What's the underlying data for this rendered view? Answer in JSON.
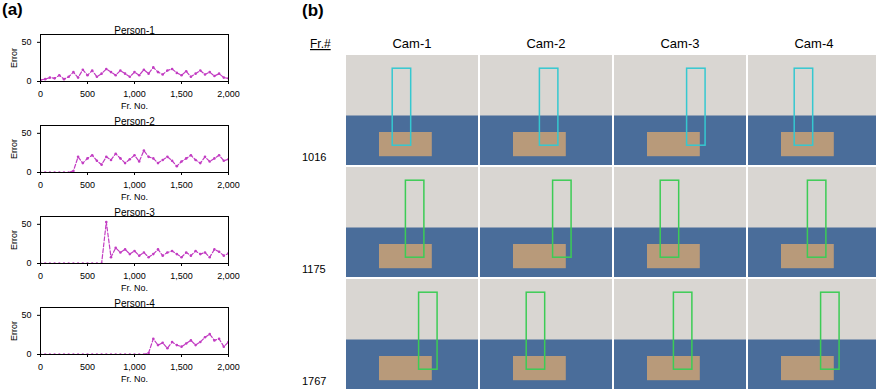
{
  "chart_data": [
    {
      "type": "line",
      "title": "Person-1",
      "xlabel": "Fr. No.",
      "ylabel": "Error",
      "color": "#c23cc2",
      "marker": "circle",
      "line_style": "dashed",
      "xlim": [
        0,
        2000
      ],
      "xticks": [
        0,
        500,
        1000,
        1500,
        2000
      ],
      "ylim": [
        0,
        60
      ],
      "yticks": [
        0,
        50
      ],
      "x": [
        0,
        50,
        100,
        150,
        200,
        250,
        300,
        350,
        400,
        450,
        500,
        550,
        600,
        650,
        700,
        750,
        800,
        850,
        900,
        950,
        1000,
        1050,
        1100,
        1150,
        1200,
        1250,
        1300,
        1350,
        1400,
        1450,
        1500,
        1550,
        1600,
        1650,
        1700,
        1750,
        1800,
        1850,
        1900,
        1950,
        2000
      ],
      "values": [
        2,
        3,
        5,
        4,
        8,
        3,
        6,
        12,
        5,
        15,
        8,
        14,
        6,
        10,
        16,
        12,
        8,
        14,
        10,
        6,
        12,
        8,
        15,
        10,
        18,
        12,
        9,
        14,
        16,
        11,
        8,
        13,
        6,
        10,
        14,
        9,
        12,
        7,
        10,
        5,
        4
      ]
    },
    {
      "type": "line",
      "title": "Person-2",
      "xlabel": "Fr. No.",
      "ylabel": "Error",
      "color": "#c23cc2",
      "marker": "circle",
      "line_style": "dashed",
      "xlim": [
        0,
        2000
      ],
      "xticks": [
        0,
        500,
        1000,
        1500,
        2000
      ],
      "ylim": [
        0,
        60
      ],
      "yticks": [
        0,
        50
      ],
      "x": [
        0,
        50,
        100,
        150,
        200,
        250,
        300,
        350,
        400,
        450,
        500,
        550,
        600,
        650,
        700,
        750,
        800,
        850,
        900,
        950,
        1000,
        1050,
        1100,
        1150,
        1200,
        1250,
        1300,
        1350,
        1400,
        1450,
        1500,
        1550,
        1600,
        1650,
        1700,
        1750,
        1800,
        1850,
        1900,
        1950,
        2000
      ],
      "values": [
        0,
        0,
        0,
        0,
        0,
        0,
        0,
        2,
        20,
        12,
        18,
        22,
        15,
        10,
        20,
        16,
        24,
        18,
        12,
        17,
        22,
        14,
        28,
        20,
        18,
        12,
        16,
        20,
        15,
        8,
        14,
        18,
        22,
        16,
        12,
        20,
        14,
        18,
        22,
        15,
        17
      ]
    },
    {
      "type": "line",
      "title": "Person-3",
      "xlabel": "Fr. No.",
      "ylabel": "Error",
      "color": "#c23cc2",
      "marker": "circle",
      "line_style": "dashed",
      "xlim": [
        0,
        2000
      ],
      "xticks": [
        0,
        500,
        1000,
        1500,
        2000
      ],
      "ylim": [
        0,
        60
      ],
      "yticks": [
        0,
        50
      ],
      "x": [
        0,
        50,
        100,
        150,
        200,
        250,
        300,
        350,
        400,
        450,
        500,
        550,
        600,
        650,
        700,
        750,
        800,
        850,
        900,
        950,
        1000,
        1050,
        1100,
        1150,
        1200,
        1250,
        1300,
        1350,
        1400,
        1450,
        1500,
        1550,
        1600,
        1650,
        1700,
        1750,
        1800,
        1850,
        1900,
        1950,
        2000
      ],
      "values": [
        0,
        0,
        0,
        0,
        0,
        0,
        0,
        0,
        0,
        0,
        0,
        0,
        0,
        0,
        53,
        8,
        20,
        14,
        18,
        12,
        16,
        10,
        14,
        8,
        12,
        18,
        10,
        14,
        16,
        12,
        8,
        14,
        10,
        16,
        12,
        14,
        8,
        18,
        15,
        10,
        13
      ]
    },
    {
      "type": "line",
      "title": "Person-4",
      "xlabel": "Fr. No.",
      "ylabel": "Error",
      "color": "#c23cc2",
      "marker": "circle",
      "line_style": "dashed",
      "xlim": [
        0,
        2000
      ],
      "xticks": [
        0,
        500,
        1000,
        1500,
        2000
      ],
      "ylim": [
        0,
        60
      ],
      "yticks": [
        0,
        50
      ],
      "x": [
        0,
        50,
        100,
        150,
        200,
        250,
        300,
        350,
        400,
        450,
        500,
        550,
        600,
        650,
        700,
        750,
        800,
        850,
        900,
        950,
        1000,
        1050,
        1100,
        1150,
        1200,
        1250,
        1300,
        1350,
        1400,
        1450,
        1500,
        1550,
        1600,
        1650,
        1700,
        1750,
        1800,
        1850,
        1900,
        1950,
        2000
      ],
      "values": [
        0,
        0,
        0,
        0,
        0,
        0,
        0,
        0,
        0,
        0,
        0,
        0,
        0,
        0,
        0,
        0,
        0,
        0,
        0,
        0,
        0,
        0,
        0,
        2,
        20,
        12,
        15,
        8,
        16,
        12,
        10,
        14,
        18,
        12,
        16,
        22,
        26,
        18,
        20,
        10,
        16
      ]
    }
  ],
  "figure": {
    "panel_labels": [
      "(a)",
      "(b)"
    ],
    "image_grid": {
      "header": "Fr.#",
      "columns": [
        "Cam-1",
        "Cam-2",
        "Cam-3",
        "Cam-4"
      ],
      "rows": [
        1016,
        1175,
        1767
      ]
    }
  }
}
